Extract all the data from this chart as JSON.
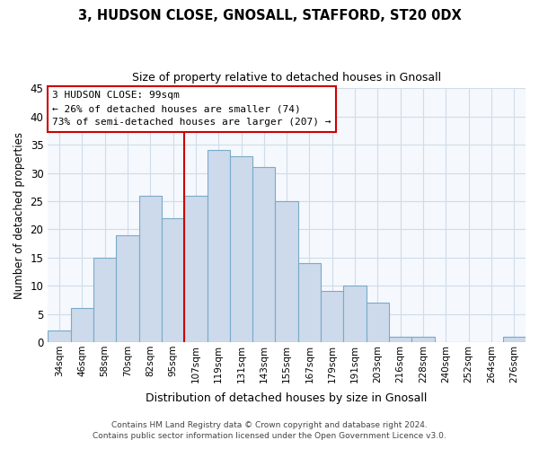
{
  "title1": "3, HUDSON CLOSE, GNOSALL, STAFFORD, ST20 0DX",
  "title2": "Size of property relative to detached houses in Gnosall",
  "xlabel": "Distribution of detached houses by size in Gnosall",
  "ylabel": "Number of detached properties",
  "bin_labels": [
    "34sqm",
    "46sqm",
    "58sqm",
    "70sqm",
    "82sqm",
    "95sqm",
    "107sqm",
    "119sqm",
    "131sqm",
    "143sqm",
    "155sqm",
    "167sqm",
    "179sqm",
    "191sqm",
    "203sqm",
    "216sqm",
    "228sqm",
    "240sqm",
    "252sqm",
    "264sqm",
    "276sqm"
  ],
  "bar_heights": [
    2,
    6,
    15,
    19,
    26,
    22,
    26,
    34,
    33,
    31,
    25,
    14,
    9,
    10,
    7,
    1,
    1,
    0,
    0,
    0,
    1
  ],
  "bar_color": "#ccdaeb",
  "bar_edge_color": "#7aaac8",
  "reference_line_x": 5.5,
  "reference_line_color": "#cc0000",
  "annotation_title": "3 HUDSON CLOSE: 99sqm",
  "annotation_line1": "← 26% of detached houses are smaller (74)",
  "annotation_line2": "73% of semi-detached houses are larger (207) →",
  "annotation_box_edge_color": "#cc0000",
  "ylim": [
    0,
    45
  ],
  "yticks": [
    0,
    5,
    10,
    15,
    20,
    25,
    30,
    35,
    40,
    45
  ],
  "footer1": "Contains HM Land Registry data © Crown copyright and database right 2024.",
  "footer2": "Contains public sector information licensed under the Open Government Licence v3.0.",
  "bg_color": "#ffffff",
  "plot_bg_color": "#f5f8fd",
  "grid_color": "#d0dce8"
}
